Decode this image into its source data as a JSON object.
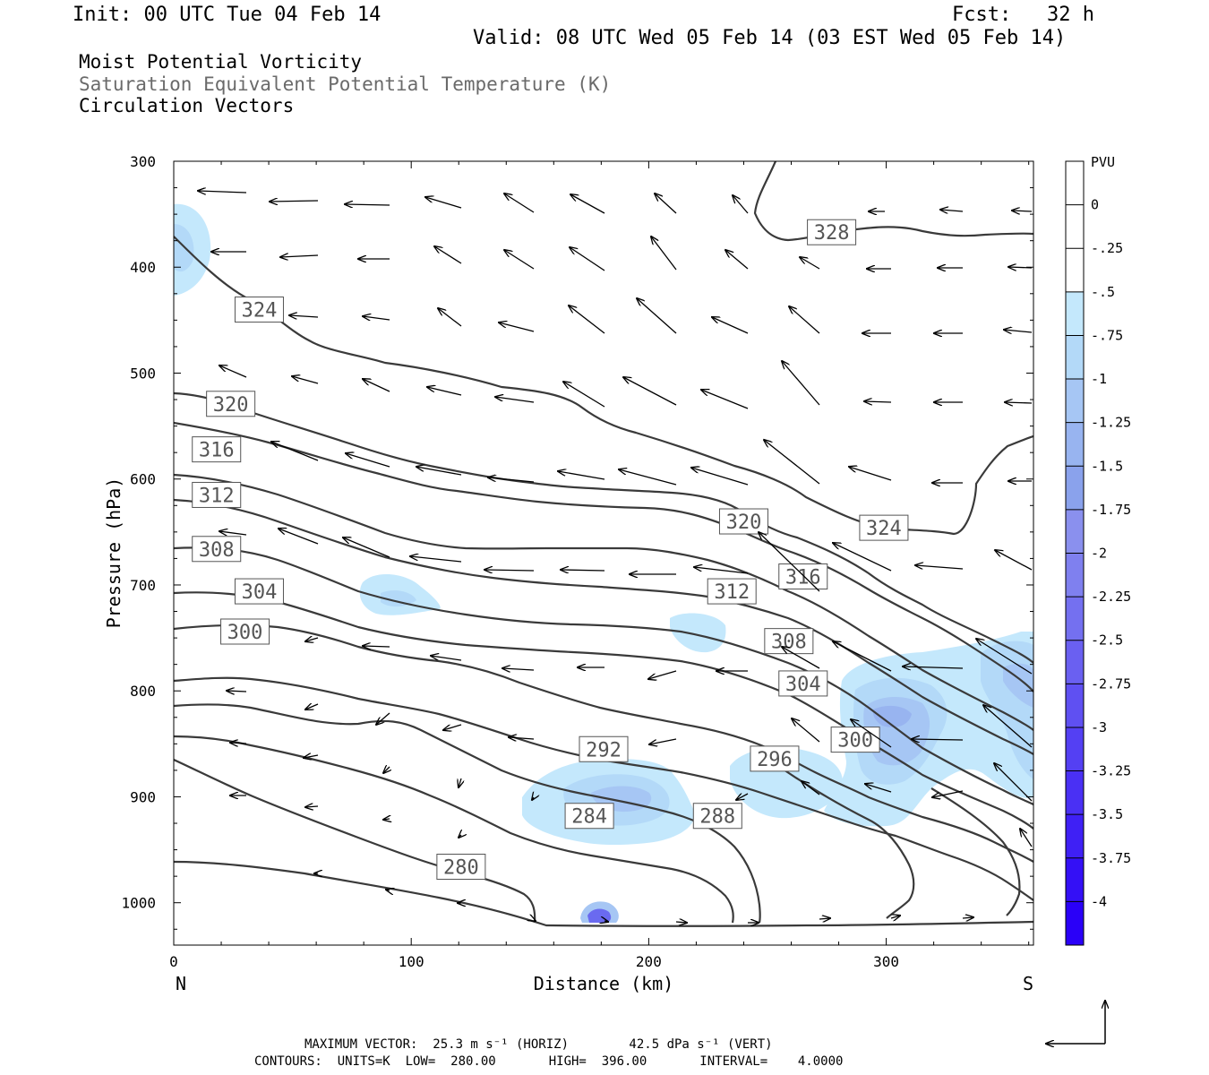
{
  "header": {
    "init": "Init: 00 UTC Tue 04 Feb 14",
    "fcst": "Fcst:   32 h",
    "valid": "Valid: 08 UTC Wed 05 Feb 14 (03 EST Wed 05 Feb 14)",
    "field1": "Moist Potential Vorticity",
    "field2": "Saturation Equivalent Potential Temperature (K)",
    "field3": "Circulation Vectors"
  },
  "footer": {
    "max_vector": "MAXIMUM VECTOR:  25.3 m s⁻¹ (HORIZ)        42.5 dPa s⁻¹ (VERT)",
    "contours": "CONTOURS:  UNITS=K  LOW=  280.00       HIGH=  396.00       INTERVAL=    4.0000"
  },
  "colors": {
    "contour": "#3a3a3a",
    "pv_shades": [
      "#c4e8fc",
      "#b3d9f8",
      "#a6c6f4",
      "#98b4f0",
      "#8aa2ec",
      "#6a6af0"
    ]
  },
  "chart_data": {
    "type": "cross-section",
    "xlabel": "Distance (km)",
    "ylabel": "Pressure (hPa)",
    "x_end_labels": [
      "N",
      "S"
    ],
    "xlim": [
      0,
      362
    ],
    "ylim": [
      1040,
      300
    ],
    "x_ticks": [
      0,
      100,
      200,
      300
    ],
    "y_ticks": [
      300,
      400,
      500,
      600,
      700,
      800,
      900,
      1000
    ],
    "colorbar": {
      "unit": "PVU",
      "labels": [
        "0",
        "-.25",
        "-.5",
        "-.75",
        "-1",
        "-1.25",
        "-1.5",
        "-1.75",
        "-2",
        "-2.25",
        "-2.5",
        "-2.75",
        "-3",
        "-3.25",
        "-3.5",
        "-3.75",
        "-4"
      ],
      "colors": [
        "#ffffff",
        "#ffffff",
        "#c4e8fc",
        "#b3d9f8",
        "#a6c6f4",
        "#98b4f0",
        "#8aa2ec",
        "#8a90ee",
        "#7f80ef",
        "#7470f0",
        "#6a60f1",
        "#5f50f2",
        "#5440f3",
        "#4a30f4",
        "#3f20f5",
        "#3410f6",
        "#2a00f8"
      ]
    },
    "contour_labels": [
      {
        "text": "328",
        "x": 277,
        "p": 367
      },
      {
        "text": "324",
        "x": 36,
        "p": 440
      },
      {
        "text": "320",
        "x": 24,
        "p": 529
      },
      {
        "text": "316",
        "x": 18,
        "p": 572
      },
      {
        "text": "312",
        "x": 18,
        "p": 615
      },
      {
        "text": "308",
        "x": 18,
        "p": 666
      },
      {
        "text": "304",
        "x": 36,
        "p": 706
      },
      {
        "text": "300",
        "x": 30,
        "p": 744
      },
      {
        "text": "320",
        "x": 240,
        "p": 640
      },
      {
        "text": "324",
        "x": 299,
        "p": 646
      },
      {
        "text": "316",
        "x": 265,
        "p": 692
      },
      {
        "text": "312",
        "x": 235,
        "p": 706
      },
      {
        "text": "308",
        "x": 259,
        "p": 753
      },
      {
        "text": "304",
        "x": 265,
        "p": 793
      },
      {
        "text": "300",
        "x": 287,
        "p": 846
      },
      {
        "text": "292",
        "x": 181,
        "p": 855
      },
      {
        "text": "296",
        "x": 253,
        "p": 864
      },
      {
        "text": "284",
        "x": 175,
        "p": 918
      },
      {
        "text": "288",
        "x": 229,
        "p": 918
      },
      {
        "text": "280",
        "x": 121,
        "p": 966
      }
    ]
  }
}
